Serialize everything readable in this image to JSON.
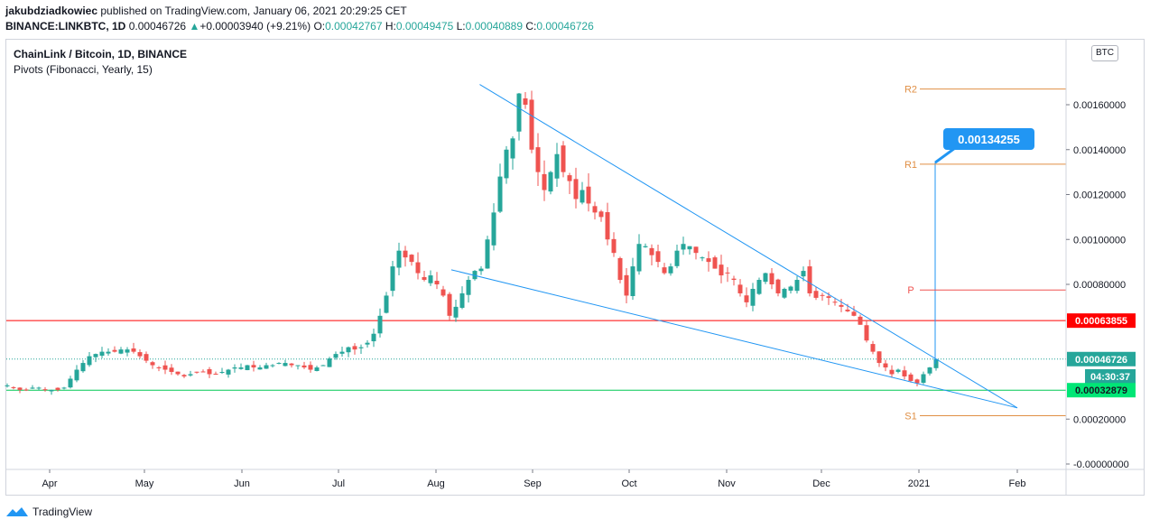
{
  "header": {
    "author": "jakubdziadkowiec",
    "published": "published on TradingView.com, January 06, 2021 20:29:25 CET",
    "symbol": "BINANCE:LINKBTC, 1D",
    "last": "0.00046726",
    "change": "+0.00003940 (+9.21%)",
    "o_label": "O:",
    "o": "0.00042767",
    "h_label": "H:",
    "h": "0.00049475",
    "l_label": "L:",
    "l": "0.00040889",
    "c_label": "C:",
    "c": "0.00046726"
  },
  "legend": {
    "title": "ChainLink / Bitcoin, 1D, BINANCE",
    "indicator": "Pivots (Fibonacci, Yearly, 15)"
  },
  "currency_button": "BTC",
  "footer": {
    "brand": "TradingView"
  },
  "colors": {
    "up": "#26a69a",
    "down": "#ef5350",
    "trendline": "#2196f3",
    "pivot": "#e08f45",
    "pivot_p": "#ef5350",
    "resistance": "#ff0000",
    "support": "#00c853"
  },
  "chart_data": {
    "type": "candlestick",
    "x_labels": [
      "Apr",
      "May",
      "Jun",
      "Jul",
      "Aug",
      "Sep",
      "Oct",
      "Nov",
      "Dec",
      "2021",
      "Feb"
    ],
    "y_ticks": [
      "0.00160000",
      "0.00140000",
      "0.00120000",
      "0.00100000",
      "0.00080000",
      "0.00020000",
      "-0.00000000"
    ],
    "y_range": [
      -1e-07,
      0.0018
    ],
    "pivots": [
      {
        "label": "R2",
        "value": 0.00167
      },
      {
        "label": "R1",
        "value": 0.001335
      },
      {
        "label": "P",
        "value": 0.000775
      },
      {
        "label": "S1",
        "value": 0.000215
      }
    ],
    "horizontal_lines": [
      {
        "label": "0.00063855",
        "value": 0.00063855,
        "color": "#ff0000"
      },
      {
        "label": "0.00032879",
        "value": 0.00032879,
        "color": "#00c853"
      }
    ],
    "last_price": {
      "label": "0.00046726",
      "value": 0.00046726,
      "countdown": "04:30:37"
    },
    "target_callout": {
      "label": "0.00134255",
      "value": 0.00134255
    },
    "wedge": {
      "upper": [
        [
          "2020-08-15",
          0.00169
        ],
        [
          "2021-01-07",
          0.00046
        ]
      ],
      "lower": [
        [
          "2020-08-06",
          0.000865
        ],
        [
          "2021-01-07",
          0.00033
        ]
      ],
      "apex": [
        "2021-02-01",
        0.00025
      ]
    },
    "ohlc_closes": [
      [
        0.00035,
        0.00034,
        0.00033,
        0.00033,
        0.00034,
        0.00034,
        0.00033,
        0.00033,
        0.00033,
        0.00034,
        0.00038,
        0.00042,
        0.00045,
        0.00048,
        0.00049,
        0.0005,
        0.0005,
        0.0005,
        0.00051,
        0.00051,
        0.0005,
        0.00048,
        0.00046,
        0.00044,
        0.00043,
        0.00042,
        0.00041,
        0.0004,
        0.00039,
        0.0004,
        0.00041,
        0.00041,
        0.0004,
        0.0004,
        0.00041,
        0.00042,
        0.00043,
        0.00043,
        0.00044,
        0.00043,
        0.00043,
        0.00044,
        0.00044,
        0.00045,
        0.00045,
        0.00044,
        0.00044,
        0.00043,
        0.00042,
        0.00043,
        0.00044,
        0.00047,
        0.00049,
        0.0005,
        0.00052,
        0.00051,
        0.00052,
        0.00054,
        0.00058,
        0.00066,
        0.00075,
        0.00088,
        0.00095,
        0.00092,
        0.0009,
        0.00085,
        0.00082,
        0.00084,
        0.0008,
        0.00075,
        0.00066,
        0.0007,
        0.00076,
        0.00082,
        0.00086,
        0.00087,
        0.001,
        0.00112,
        0.00128,
        0.0014,
        0.00145,
        0.00165,
        0.0016,
        0.0014,
        0.0013,
        0.00122,
        0.0013,
        0.00138,
        0.0013,
        0.00126,
        0.00118,
        0.00122,
        0.00116,
        0.00112,
        0.0011,
        0.001,
        0.00094,
        0.00082,
        0.00075,
        0.00088,
        0.00098,
        0.00097,
        0.00093,
        0.0009,
        0.00085,
        0.00088,
        0.00095,
        0.00098,
        0.00097,
        0.00094,
        0.00092,
        0.0009,
        0.00087,
        0.00084,
        0.00085,
        0.00082,
        0.00076,
        0.00072,
        0.00078,
        0.00082,
        0.00085,
        0.0008,
        0.00076,
        0.00078,
        0.00079,
        0.00082,
        0.00086,
        0.00076,
        0.00074,
        0.00075,
        0.00074,
        0.00072,
        0.0007,
        0.00068,
        0.00066,
        0.00062,
        0.00055,
        0.0005,
        0.00045,
        0.00043,
        0.0004,
        0.00042,
        0.00039,
        0.00037,
        0.00036,
        0.0004,
        0.00043,
        0.00046726
      ]
    ]
  }
}
